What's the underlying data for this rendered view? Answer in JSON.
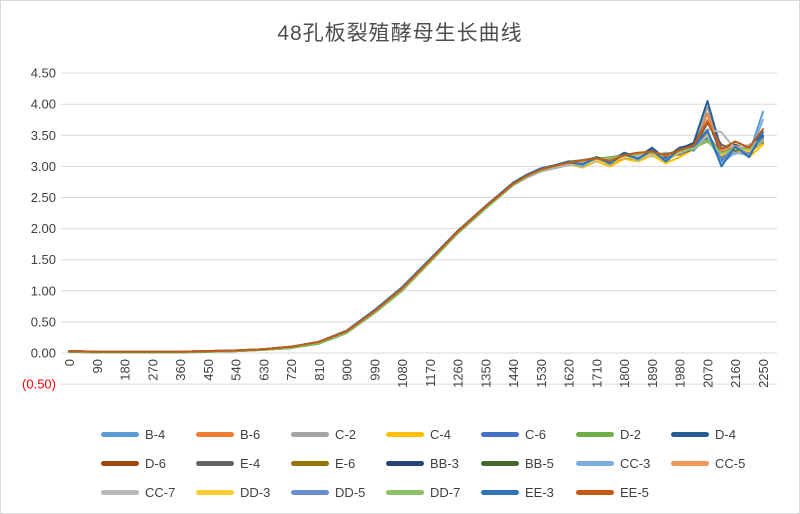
{
  "page": {
    "background": "#FFFFFF",
    "border_color": "#D9D9D9"
  },
  "chart_data": {
    "type": "line",
    "title": "48孔板裂殖酵母生长曲线",
    "title_color": "#4d4d4d",
    "grid": {
      "show": true,
      "color": "#D9D9D9"
    },
    "legend": {
      "position": "bottom",
      "rows": [
        7,
        7,
        6
      ]
    },
    "x_axis": {
      "min": 0,
      "max": 2250,
      "tick_step": 90,
      "label_color": "#404040",
      "tick_labels": [
        "0",
        "90",
        "180",
        "270",
        "360",
        "450",
        "540",
        "630",
        "720",
        "810",
        "900",
        "990",
        "1080",
        "1170",
        "1260",
        "1350",
        "1440",
        "1530",
        "1620",
        "1710",
        "1800",
        "1890",
        "1980",
        "2070",
        "2160",
        "2250"
      ]
    },
    "y_axis": {
      "min": -0.5,
      "max": 4.5,
      "label_color": "#404040",
      "ticks": [
        {
          "label": "4.50",
          "value": 4.5
        },
        {
          "label": "4.00",
          "value": 4.0
        },
        {
          "label": "3.50",
          "value": 3.5
        },
        {
          "label": "3.00",
          "value": 3.0
        },
        {
          "label": "2.50",
          "value": 2.5
        },
        {
          "label": "2.00",
          "value": 2.0
        },
        {
          "label": "1.50",
          "value": 1.5
        },
        {
          "label": "1.00",
          "value": 1.0
        },
        {
          "label": "0.50",
          "value": 0.5
        },
        {
          "label": "0.00",
          "value": 0.0
        },
        {
          "label": "(0.50)",
          "value": -0.5,
          "color": "#FF0000"
        }
      ]
    },
    "x": [
      0,
      90,
      180,
      270,
      360,
      450,
      540,
      630,
      720,
      810,
      900,
      990,
      1080,
      1170,
      1260,
      1350,
      1440,
      1485,
      1530,
      1575,
      1620,
      1665,
      1710,
      1755,
      1800,
      1845,
      1890,
      1935,
      1980,
      2025,
      2070,
      2115,
      2160,
      2205,
      2250
    ],
    "series": [
      {
        "name": "B-4",
        "color": "#5B9BD5",
        "values": [
          0.03,
          0.02,
          0.02,
          0.02,
          0.02,
          0.03,
          0.04,
          0.06,
          0.1,
          0.18,
          0.35,
          0.68,
          1.05,
          1.5,
          1.95,
          2.35,
          2.72,
          2.85,
          2.95,
          3.0,
          3.06,
          3.0,
          3.15,
          3.02,
          3.2,
          3.1,
          3.25,
          3.05,
          3.3,
          3.25,
          3.5,
          3.1,
          3.25,
          3.2,
          3.88
        ]
      },
      {
        "name": "B-6",
        "color": "#ED7D31",
        "values": [
          0.03,
          0.02,
          0.02,
          0.02,
          0.02,
          0.03,
          0.04,
          0.06,
          0.1,
          0.17,
          0.34,
          0.66,
          1.03,
          1.48,
          1.93,
          2.33,
          2.7,
          2.83,
          2.93,
          2.98,
          3.03,
          3.05,
          3.1,
          3.08,
          3.15,
          3.18,
          3.2,
          3.18,
          3.22,
          3.35,
          3.85,
          3.2,
          3.32,
          3.25,
          3.45
        ]
      },
      {
        "name": "C-2",
        "color": "#A5A5A5",
        "values": [
          0.03,
          0.02,
          0.02,
          0.02,
          0.02,
          0.03,
          0.04,
          0.06,
          0.09,
          0.17,
          0.33,
          0.65,
          1.02,
          1.47,
          1.92,
          2.32,
          2.7,
          2.82,
          2.92,
          2.97,
          3.02,
          3.06,
          3.08,
          3.12,
          3.14,
          3.2,
          3.16,
          3.22,
          3.18,
          3.3,
          3.95,
          3.3,
          3.2,
          3.3,
          3.4
        ]
      },
      {
        "name": "C-4",
        "color": "#FFC000",
        "values": [
          0.03,
          0.02,
          0.02,
          0.02,
          0.02,
          0.03,
          0.04,
          0.06,
          0.1,
          0.18,
          0.35,
          0.67,
          1.04,
          1.49,
          1.94,
          2.34,
          2.71,
          2.84,
          2.94,
          2.99,
          3.04,
          2.98,
          3.08,
          3.0,
          3.12,
          3.08,
          3.18,
          3.05,
          3.15,
          3.28,
          3.45,
          3.1,
          3.28,
          3.15,
          3.35
        ]
      },
      {
        "name": "C-6",
        "color": "#4472C4",
        "values": [
          0.03,
          0.02,
          0.02,
          0.02,
          0.02,
          0.03,
          0.04,
          0.06,
          0.1,
          0.18,
          0.36,
          0.69,
          1.06,
          1.51,
          1.96,
          2.36,
          2.73,
          2.86,
          2.96,
          3.01,
          3.06,
          3.04,
          3.14,
          3.06,
          3.2,
          3.12,
          3.28,
          3.1,
          3.28,
          3.32,
          3.55,
          3.08,
          3.35,
          3.22,
          3.5
        ]
      },
      {
        "name": "D-2",
        "color": "#70AD47",
        "values": [
          0.02,
          0.01,
          0.01,
          0.01,
          0.01,
          0.02,
          0.03,
          0.05,
          0.08,
          0.15,
          0.32,
          0.64,
          1.0,
          1.46,
          1.92,
          2.32,
          2.7,
          2.83,
          2.94,
          3.0,
          3.08,
          3.1,
          3.12,
          3.15,
          3.18,
          3.22,
          3.2,
          3.18,
          3.25,
          3.3,
          3.4,
          3.2,
          3.28,
          3.3,
          3.42
        ]
      },
      {
        "name": "D-4",
        "color": "#255E91",
        "values": [
          0.03,
          0.02,
          0.02,
          0.02,
          0.02,
          0.03,
          0.04,
          0.06,
          0.1,
          0.18,
          0.35,
          0.68,
          1.05,
          1.5,
          1.96,
          2.36,
          2.74,
          2.87,
          2.97,
          3.02,
          3.08,
          3.05,
          3.15,
          3.08,
          3.22,
          3.15,
          3.3,
          3.12,
          3.28,
          3.38,
          4.05,
          3.25,
          3.4,
          3.3,
          3.55
        ]
      },
      {
        "name": "D-6",
        "color": "#9E480E",
        "values": [
          0.03,
          0.02,
          0.02,
          0.02,
          0.02,
          0.03,
          0.04,
          0.06,
          0.1,
          0.17,
          0.34,
          0.66,
          1.03,
          1.48,
          1.94,
          2.34,
          2.72,
          2.85,
          2.95,
          3.0,
          3.05,
          3.08,
          3.12,
          3.1,
          3.16,
          3.2,
          3.22,
          3.16,
          3.24,
          3.3,
          3.5,
          3.22,
          3.3,
          3.28,
          3.42
        ]
      },
      {
        "name": "E-4",
        "color": "#636363",
        "values": [
          0.03,
          0.02,
          0.02,
          0.02,
          0.02,
          0.03,
          0.04,
          0.06,
          0.09,
          0.17,
          0.34,
          0.66,
          1.02,
          1.47,
          1.93,
          2.33,
          2.71,
          2.84,
          2.94,
          2.99,
          3.04,
          3.07,
          3.1,
          3.13,
          3.15,
          3.18,
          3.18,
          3.2,
          3.2,
          3.28,
          3.7,
          3.35,
          3.25,
          3.32,
          3.38
        ]
      },
      {
        "name": "E-6",
        "color": "#997300",
        "values": [
          0.03,
          0.02,
          0.02,
          0.02,
          0.02,
          0.03,
          0.04,
          0.06,
          0.1,
          0.18,
          0.35,
          0.67,
          1.04,
          1.49,
          1.95,
          2.35,
          2.72,
          2.85,
          2.95,
          3.0,
          3.05,
          3.02,
          3.1,
          3.06,
          3.14,
          3.12,
          3.2,
          3.1,
          3.22,
          3.3,
          3.48,
          3.15,
          3.28,
          3.22,
          3.4
        ]
      },
      {
        "name": "BB-3",
        "color": "#264478",
        "values": [
          0.03,
          0.02,
          0.02,
          0.02,
          0.02,
          0.03,
          0.04,
          0.06,
          0.1,
          0.18,
          0.35,
          0.68,
          1.05,
          1.5,
          1.95,
          2.35,
          2.73,
          2.86,
          2.96,
          3.01,
          3.07,
          3.1,
          3.14,
          3.12,
          3.2,
          3.16,
          3.26,
          3.14,
          3.3,
          3.35,
          3.75,
          3.2,
          3.35,
          3.25,
          3.48
        ]
      },
      {
        "name": "BB-5",
        "color": "#43682B",
        "values": [
          0.02,
          0.01,
          0.01,
          0.01,
          0.01,
          0.02,
          0.03,
          0.05,
          0.08,
          0.16,
          0.33,
          0.65,
          1.01,
          1.47,
          1.93,
          2.33,
          2.71,
          2.84,
          2.95,
          3.01,
          3.07,
          3.09,
          3.13,
          3.14,
          3.18,
          3.21,
          3.22,
          3.19,
          3.26,
          3.31,
          3.45,
          3.22,
          3.3,
          3.3,
          3.44
        ]
      },
      {
        "name": "CC-3",
        "color": "#7CAFDD",
        "values": [
          0.03,
          0.02,
          0.02,
          0.02,
          0.02,
          0.03,
          0.04,
          0.06,
          0.1,
          0.18,
          0.35,
          0.68,
          1.05,
          1.5,
          1.94,
          2.34,
          2.72,
          2.85,
          2.95,
          3.0,
          3.05,
          3.0,
          3.12,
          3.04,
          3.18,
          3.1,
          3.22,
          3.08,
          3.25,
          3.28,
          3.48,
          3.05,
          3.22,
          3.18,
          3.75
        ]
      },
      {
        "name": "CC-5",
        "color": "#F1975A",
        "values": [
          0.03,
          0.02,
          0.02,
          0.02,
          0.02,
          0.03,
          0.04,
          0.06,
          0.1,
          0.17,
          0.34,
          0.67,
          1.04,
          1.49,
          1.94,
          2.34,
          2.71,
          2.84,
          2.94,
          2.99,
          3.04,
          3.06,
          3.09,
          3.11,
          3.14,
          3.17,
          3.19,
          3.17,
          3.22,
          3.32,
          3.75,
          3.25,
          3.33,
          3.27,
          3.43
        ]
      },
      {
        "name": "CC-7",
        "color": "#B7B7B7",
        "values": [
          0.03,
          0.02,
          0.02,
          0.02,
          0.02,
          0.03,
          0.04,
          0.06,
          0.09,
          0.17,
          0.33,
          0.65,
          1.02,
          1.47,
          1.92,
          2.32,
          2.7,
          2.83,
          2.93,
          2.98,
          3.03,
          3.05,
          3.08,
          3.1,
          3.13,
          3.16,
          3.17,
          3.19,
          3.21,
          3.3,
          3.6,
          3.55,
          3.28,
          3.35,
          3.42
        ]
      },
      {
        "name": "DD-3",
        "color": "#FFCD33",
        "values": [
          0.03,
          0.02,
          0.02,
          0.02,
          0.02,
          0.03,
          0.04,
          0.06,
          0.1,
          0.18,
          0.35,
          0.67,
          1.04,
          1.49,
          1.95,
          2.35,
          2.72,
          2.85,
          2.95,
          3.0,
          3.06,
          3.03,
          3.11,
          3.05,
          3.16,
          3.12,
          3.21,
          3.09,
          3.24,
          3.31,
          3.52,
          3.18,
          3.3,
          3.24,
          3.41
        ]
      },
      {
        "name": "DD-5",
        "color": "#698ED0",
        "values": [
          0.03,
          0.02,
          0.02,
          0.02,
          0.02,
          0.03,
          0.04,
          0.06,
          0.1,
          0.18,
          0.35,
          0.68,
          1.05,
          1.5,
          1.95,
          2.35,
          2.72,
          2.86,
          2.96,
          3.01,
          3.06,
          3.04,
          3.13,
          3.07,
          3.19,
          3.13,
          3.24,
          3.11,
          3.27,
          3.3,
          3.55,
          3.12,
          3.3,
          3.2,
          3.46
        ]
      },
      {
        "name": "DD-7",
        "color": "#8CC168",
        "values": [
          0.02,
          0.01,
          0.01,
          0.01,
          0.01,
          0.02,
          0.03,
          0.05,
          0.08,
          0.16,
          0.33,
          0.65,
          1.01,
          1.46,
          1.92,
          2.32,
          2.7,
          2.84,
          2.94,
          3.0,
          3.07,
          3.09,
          3.12,
          3.14,
          3.17,
          3.2,
          3.21,
          3.18,
          3.24,
          3.29,
          3.42,
          3.21,
          3.29,
          3.28,
          3.4
        ]
      },
      {
        "name": "EE-3",
        "color": "#2E75B6",
        "values": [
          0.03,
          0.02,
          0.02,
          0.02,
          0.02,
          0.03,
          0.04,
          0.06,
          0.1,
          0.18,
          0.35,
          0.68,
          1.05,
          1.5,
          1.95,
          2.35,
          2.73,
          2.86,
          2.96,
          3.01,
          3.07,
          3.03,
          3.14,
          3.05,
          3.2,
          3.12,
          3.26,
          3.08,
          3.28,
          3.33,
          3.58,
          3.0,
          3.32,
          3.15,
          3.55
        ]
      },
      {
        "name": "EE-5",
        "color": "#C55A11",
        "values": [
          0.03,
          0.02,
          0.02,
          0.02,
          0.02,
          0.03,
          0.04,
          0.06,
          0.1,
          0.18,
          0.35,
          0.67,
          1.04,
          1.49,
          1.95,
          2.35,
          2.72,
          2.85,
          2.95,
          3.01,
          3.06,
          3.1,
          3.13,
          3.09,
          3.18,
          3.22,
          3.24,
          3.18,
          3.26,
          3.34,
          3.72,
          3.28,
          3.4,
          3.3,
          3.6
        ]
      }
    ]
  }
}
